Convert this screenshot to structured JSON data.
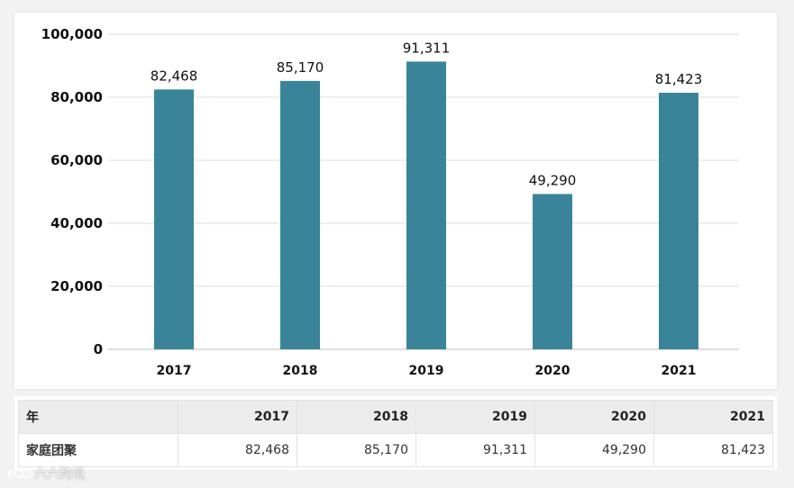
{
  "chart_data": {
    "type": "bar",
    "categories": [
      "2017",
      "2018",
      "2019",
      "2020",
      "2021"
    ],
    "values": [
      82468,
      85170,
      91311,
      49290,
      81423
    ],
    "data_labels": [
      "82,468",
      "85,170",
      "91,311",
      "49,290",
      "81,423"
    ],
    "yticks": [
      0,
      20000,
      40000,
      60000,
      80000,
      100000
    ],
    "ytick_labels": [
      "0",
      "20,000",
      "40,000",
      "60,000",
      "80,000",
      "100,000"
    ],
    "ylim": [
      0,
      100000
    ],
    "grid": true,
    "bar_color": "#3a8499",
    "title": "",
    "xlabel": "",
    "ylabel": ""
  },
  "table": {
    "header_label": "年",
    "years": [
      "2017",
      "2018",
      "2019",
      "2020",
      "2021"
    ],
    "row_label": "家庭团聚",
    "row_values": [
      "82,468",
      "85,170",
      "91,311",
      "49,290",
      "81,423"
    ]
  },
  "watermark": {
    "text": "六六跨境"
  }
}
